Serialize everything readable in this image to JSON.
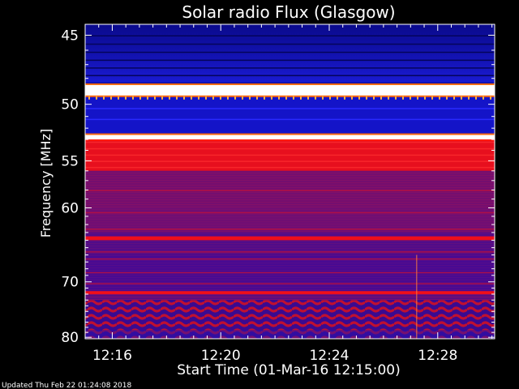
{
  "chart_data": {
    "type": "heatmap",
    "title": "Solar radio Flux (Glasgow)",
    "xlabel": "Start Time (01-Mar-16 12:15:00)",
    "ylabel": "Frequency [MHz]",
    "x_tick_labels": [
      "12:16",
      "12:20",
      "12:24",
      "12:28"
    ],
    "x_ticks_minutes": [
      16,
      20,
      24,
      28
    ],
    "xlim_minutes": [
      15,
      30.1
    ],
    "y_tick_labels": [
      "45",
      "50",
      "55",
      "60",
      "70",
      "80"
    ],
    "y_ticks_mhz": [
      45,
      50,
      55,
      60,
      70,
      80
    ],
    "ylim_mhz": [
      44.3,
      80.3
    ],
    "y_scale": "reciprocal",
    "colormap": {
      "low": "#0a0aa0",
      "mid": "#7a1070",
      "high": "#ff1010",
      "peak": "#ffffff"
    },
    "bands_mhz": [
      {
        "from": 48.5,
        "to": 49.3,
        "level": "peak"
      },
      {
        "from": 52.6,
        "to": 53.0,
        "level": "peak"
      },
      {
        "from": 53.0,
        "to": 56.0,
        "level": "high"
      },
      {
        "from": 56.0,
        "to": 63.0,
        "level": "mid"
      },
      {
        "from": 63.5,
        "to": 64.0,
        "level": "high"
      },
      {
        "from": 71.5,
        "to": 72.0,
        "level": "high"
      },
      {
        "from": 73.0,
        "to": 80.3,
        "level": "mid-striped"
      }
    ],
    "footer": "Updated Thu Feb 22 01:24:08 2018"
  }
}
